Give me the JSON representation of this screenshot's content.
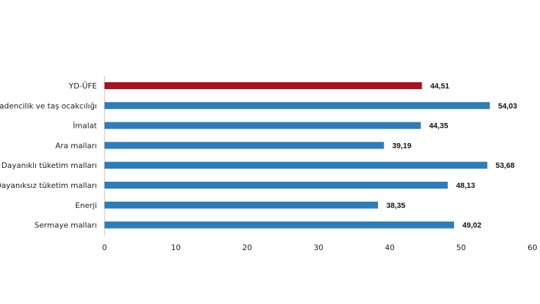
{
  "chart_data": {
    "type": "bar",
    "orientation": "horizontal",
    "categories": [
      "YD-ÜFE",
      "Madencilik ve taş ocakcılığı",
      "İmalat",
      "Ara malları",
      "Dayanıklı tüketim malları",
      "Dayanıksız tüketim malları",
      "Enerji",
      "Sermaye malları"
    ],
    "values": [
      44.51,
      54.03,
      44.35,
      39.19,
      53.68,
      48.13,
      38.35,
      49.02
    ],
    "value_labels": [
      "44,51",
      "54,03",
      "44,35",
      "39,19",
      "53,68",
      "48,13",
      "38,35",
      "49,02"
    ],
    "bar_colors": [
      "#a6121e",
      "#2e7db8",
      "#2e7db8",
      "#2e7db8",
      "#2e7db8",
      "#2e7db8",
      "#2e7db8",
      "#2e7db8"
    ],
    "xlim": [
      0,
      60
    ],
    "xticks": [
      0,
      10,
      20,
      30,
      40,
      50,
      60
    ],
    "grid": false,
    "legend": "none",
    "title": "",
    "xlabel": "",
    "ylabel": ""
  }
}
